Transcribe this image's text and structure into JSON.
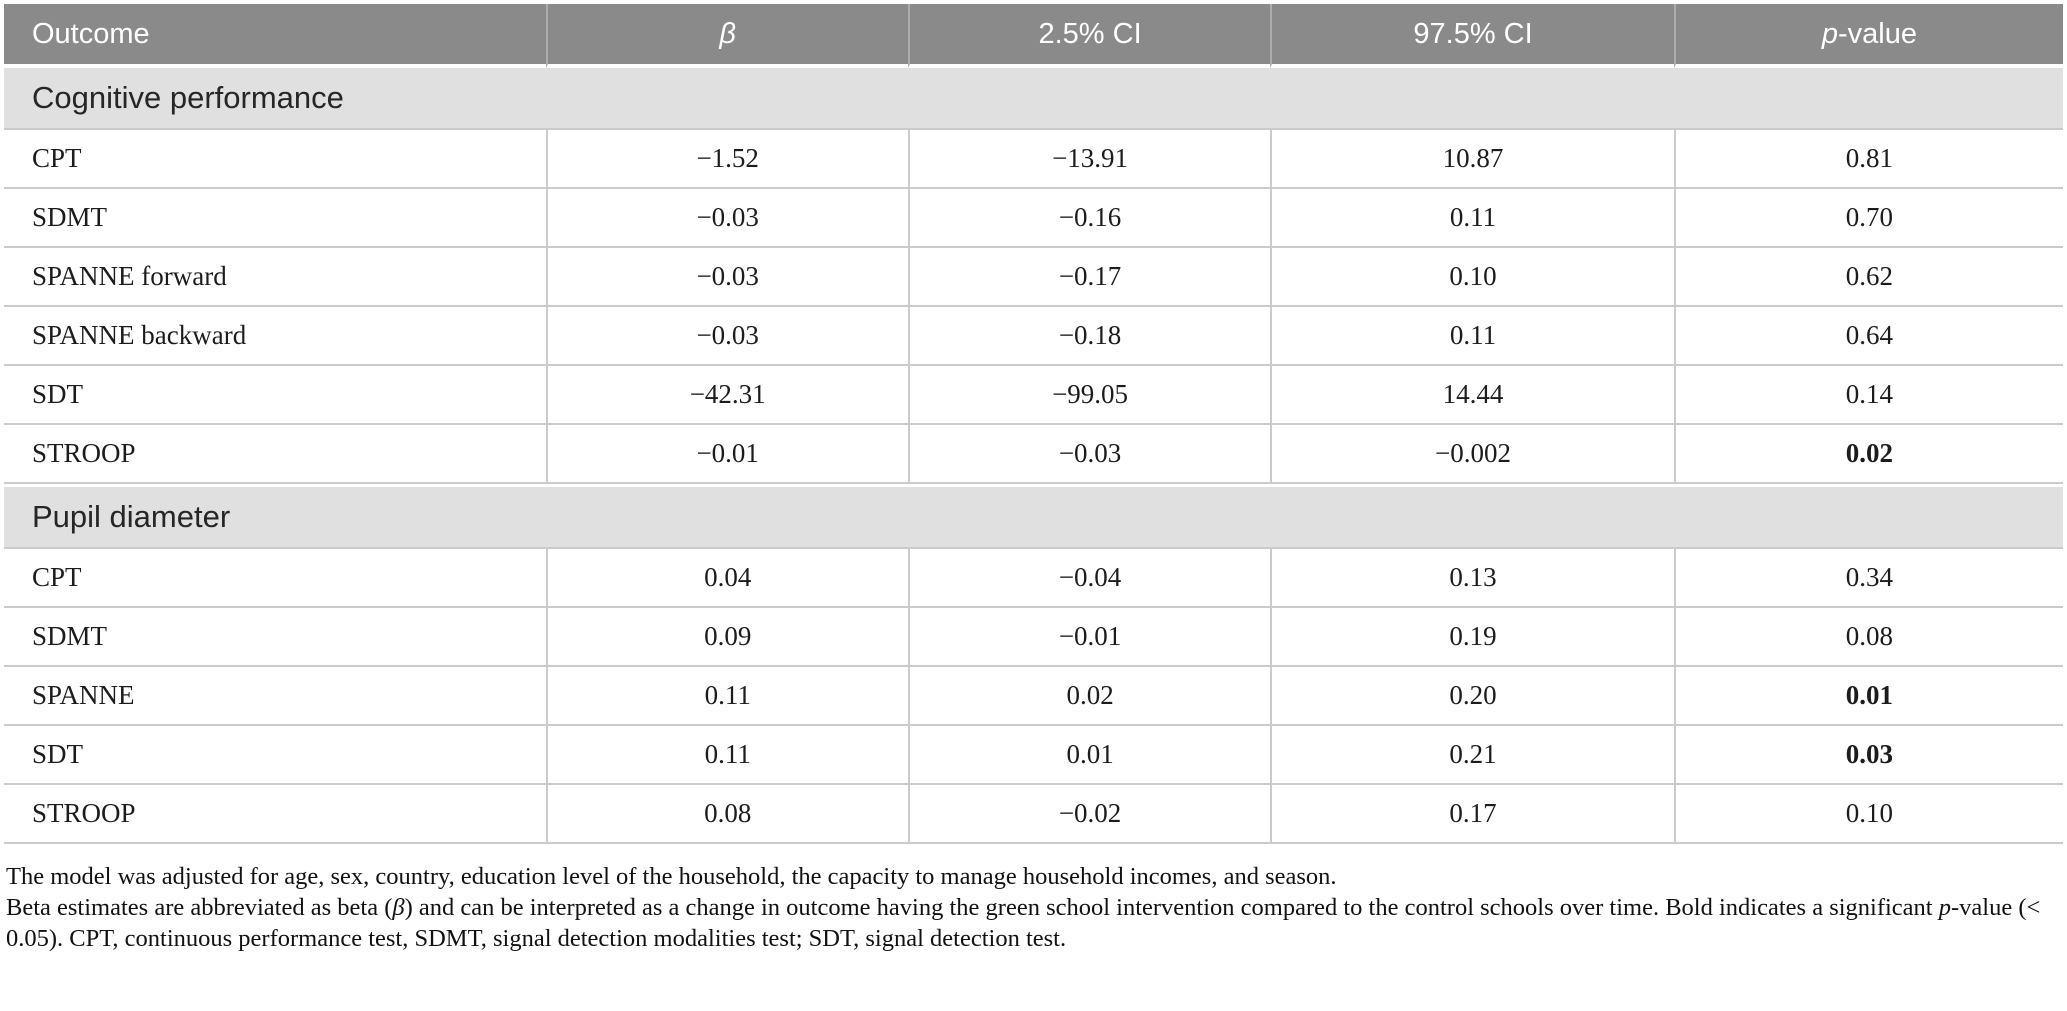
{
  "colors": {
    "header_bg": "#8a8a8a",
    "header_text": "#ffffff",
    "section_bg": "#e0e0e0",
    "grid_line": "#cbcbcb",
    "body_text": "#1c1c1c"
  },
  "table": {
    "columns": {
      "outcome": "Outcome",
      "beta": "β",
      "ci_low": "2.5% CI",
      "ci_high": "97.5% CI",
      "p_italic": "p",
      "p_rest": "-value"
    },
    "sections": [
      {
        "label": "Cognitive performance",
        "rows": [
          {
            "outcome": "CPT",
            "beta": "−1.52",
            "ci_low": "−13.91",
            "ci_high": "10.87",
            "p": "0.81",
            "p_significant": false
          },
          {
            "outcome": "SDMT",
            "beta": "−0.03",
            "ci_low": "−0.16",
            "ci_high": "0.11",
            "p": "0.70",
            "p_significant": false
          },
          {
            "outcome": "SPANNE forward",
            "beta": "−0.03",
            "ci_low": "−0.17",
            "ci_high": "0.10",
            "p": "0.62",
            "p_significant": false
          },
          {
            "outcome": "SPANNE backward",
            "beta": "−0.03",
            "ci_low": "−0.18",
            "ci_high": "0.11",
            "p": "0.64",
            "p_significant": false
          },
          {
            "outcome": "SDT",
            "beta": "−42.31",
            "ci_low": "−99.05",
            "ci_high": "14.44",
            "p": "0.14",
            "p_significant": false
          },
          {
            "outcome": "STROOP",
            "beta": "−0.01",
            "ci_low": "−0.03",
            "ci_high": "−0.002",
            "p": "0.02",
            "p_significant": true
          }
        ]
      },
      {
        "label": "Pupil diameter",
        "rows": [
          {
            "outcome": "CPT",
            "beta": "0.04",
            "ci_low": "−0.04",
            "ci_high": "0.13",
            "p": "0.34",
            "p_significant": false
          },
          {
            "outcome": "SDMT",
            "beta": "0.09",
            "ci_low": "−0.01",
            "ci_high": "0.19",
            "p": "0.08",
            "p_significant": false
          },
          {
            "outcome": "SPANNE",
            "beta": "0.11",
            "ci_low": "0.02",
            "ci_high": "0.20",
            "p": "0.01",
            "p_significant": true
          },
          {
            "outcome": "SDT",
            "beta": "0.11",
            "ci_low": "0.01",
            "ci_high": "0.21",
            "p": "0.03",
            "p_significant": true
          },
          {
            "outcome": "STROOP",
            "beta": "0.08",
            "ci_low": "−0.02",
            "ci_high": "0.17",
            "p": "0.10",
            "p_significant": false
          }
        ]
      }
    ]
  },
  "footnotes": {
    "line1": "The model was adjusted for age, sex, country, education level of the household, the capacity to manage household incomes, and season.",
    "line2_part1": "Beta estimates are abbreviated as beta (",
    "line2_beta": "β",
    "line2_part2": ") and can be interpreted as a change in outcome having the green school intervention compared to the control schools over time. Bold indicates a significant ",
    "line2_p": "p",
    "line2_part3": "-value (< 0.05). CPT, continuous performance test, SDMT, signal detection modalities test; SDT, signal detection test."
  }
}
